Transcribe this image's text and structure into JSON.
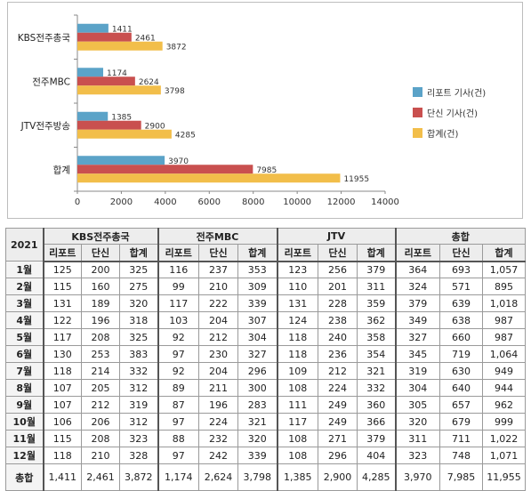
{
  "chart_data": {
    "type": "bar",
    "orientation": "horizontal",
    "categories": [
      "KBS전주총국",
      "전주MBC",
      "JTV전주방송",
      "합계"
    ],
    "series": [
      {
        "name": "리포트 기사(건)",
        "values": [
          1411,
          1174,
          1385,
          3970
        ],
        "color": "#5ba3c8"
      },
      {
        "name": "단신 기사(건)",
        "values": [
          2461,
          2624,
          2900,
          7985
        ],
        "color": "#c9504f"
      },
      {
        "name": "합계(건)",
        "values": [
          3872,
          3798,
          4285,
          11955
        ],
        "color": "#f2be4a"
      }
    ],
    "x_ticks": [
      "0",
      "2000",
      "4000",
      "6000",
      "8000",
      "10000",
      "12000",
      "14000"
    ],
    "xlim": [
      0,
      14000
    ],
    "legend_position": "right",
    "grid": false
  },
  "table": {
    "year_label": "2021",
    "groups": [
      "KBS전주총국",
      "전주MBC",
      "JTV",
      "총합"
    ],
    "subheaders": [
      "리포트",
      "단신",
      "합계",
      "리포트",
      "단신",
      "합계",
      "리포트",
      "단신",
      "합계",
      "리포트",
      "단신",
      "합계"
    ],
    "rows": [
      {
        "label": "1월",
        "cells": [
          "125",
          "200",
          "325",
          "116",
          "237",
          "353",
          "123",
          "256",
          "379",
          "364",
          "693",
          "1,057"
        ]
      },
      {
        "label": "2월",
        "cells": [
          "115",
          "160",
          "275",
          "99",
          "210",
          "309",
          "110",
          "201",
          "311",
          "324",
          "571",
          "895"
        ]
      },
      {
        "label": "3월",
        "cells": [
          "131",
          "189",
          "320",
          "117",
          "222",
          "339",
          "131",
          "228",
          "359",
          "379",
          "639",
          "1,018"
        ]
      },
      {
        "label": "4월",
        "cells": [
          "122",
          "196",
          "318",
          "103",
          "204",
          "307",
          "124",
          "238",
          "362",
          "349",
          "638",
          "987"
        ]
      },
      {
        "label": "5월",
        "cells": [
          "117",
          "208",
          "325",
          "92",
          "212",
          "304",
          "118",
          "240",
          "358",
          "327",
          "660",
          "987"
        ]
      },
      {
        "label": "6월",
        "cells": [
          "130",
          "253",
          "383",
          "97",
          "230",
          "327",
          "118",
          "236",
          "354",
          "345",
          "719",
          "1,064"
        ]
      },
      {
        "label": "7월",
        "cells": [
          "118",
          "214",
          "332",
          "92",
          "204",
          "296",
          "109",
          "212",
          "321",
          "319",
          "630",
          "949"
        ]
      },
      {
        "label": "8월",
        "cells": [
          "107",
          "205",
          "312",
          "89",
          "211",
          "300",
          "108",
          "224",
          "332",
          "304",
          "640",
          "944"
        ]
      },
      {
        "label": "9월",
        "cells": [
          "107",
          "212",
          "319",
          "87",
          "196",
          "283",
          "111",
          "249",
          "360",
          "305",
          "657",
          "962"
        ]
      },
      {
        "label": "10월",
        "cells": [
          "106",
          "206",
          "312",
          "97",
          "224",
          "321",
          "117",
          "249",
          "366",
          "320",
          "679",
          "999"
        ]
      },
      {
        "label": "11월",
        "cells": [
          "115",
          "208",
          "323",
          "88",
          "232",
          "320",
          "108",
          "271",
          "379",
          "311",
          "711",
          "1,022"
        ]
      },
      {
        "label": "12월",
        "cells": [
          "118",
          "210",
          "328",
          "97",
          "242",
          "339",
          "108",
          "296",
          "404",
          "323",
          "748",
          "1,071"
        ]
      }
    ],
    "total_row": {
      "label": "총합",
      "cells": [
        "1,411",
        "2,461",
        "3,872",
        "1,174",
        "2,624",
        "3,798",
        "1,385",
        "2,900",
        "4,285",
        "3,970",
        "7,985",
        "11,955"
      ]
    }
  }
}
